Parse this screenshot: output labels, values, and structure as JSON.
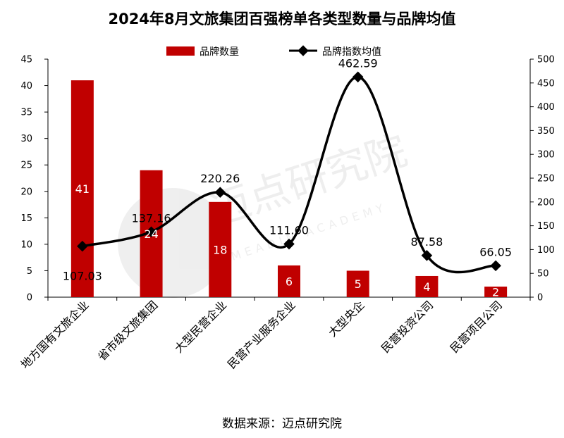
{
  "chart_data": {
    "type": "bar",
    "title": "2024年8月文旅集团百强榜单各类型数量与品牌均值",
    "categories": [
      "地方国有文旅企业",
      "省市级文旅集团",
      "大型民营企业",
      "民营产业服务企业",
      "大型央企",
      "民营投资公司",
      "民营项目公司"
    ],
    "series": [
      {
        "name": "品牌数量",
        "type": "bar",
        "axis": "left",
        "color": "#c00000",
        "values": [
          41,
          24,
          18,
          6,
          5,
          4,
          2
        ]
      },
      {
        "name": "品牌指数均值",
        "type": "line",
        "axis": "right",
        "color": "#000000",
        "values": [
          107.03,
          137.16,
          220.26,
          111.6,
          462.59,
          87.58,
          66.05
        ]
      }
    ],
    "value_labels": {
      "bars": [
        "41",
        "24",
        "18",
        "6",
        "5",
        "4",
        "2"
      ],
      "line": [
        "107.03",
        "137.16",
        "220.26",
        "111.60",
        "462.59",
        "87.58",
        "66.05"
      ]
    },
    "y_left": {
      "min": 0,
      "max": 45,
      "ticks": [
        "0",
        "5",
        "10",
        "15",
        "20",
        "25",
        "30",
        "35",
        "40",
        "45"
      ]
    },
    "y_right": {
      "min": 0,
      "max": 500,
      "ticks": [
        "0",
        "50",
        "100",
        "150",
        "200",
        "250",
        "300",
        "350",
        "400",
        "450",
        "500"
      ]
    },
    "legend_position": "top-center",
    "grid": false,
    "line_smooth": true
  },
  "source": "数据来源：迈点研究院",
  "watermark": {
    "main": "迈点研究院",
    "sub": "MEADIN ACADEMY"
  }
}
